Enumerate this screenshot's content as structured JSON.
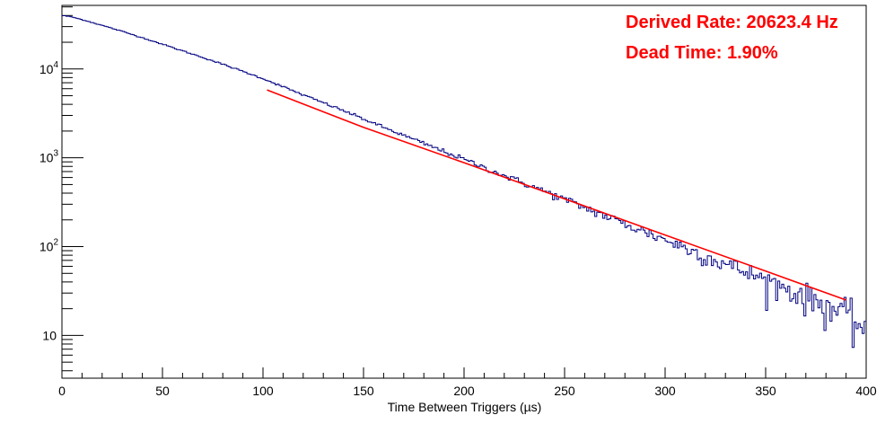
{
  "chart_data": {
    "type": "line",
    "xlabel": "Time Between Triggers (µs)",
    "ylabel": "",
    "xlim": [
      0,
      400
    ],
    "ylim": [
      3.3,
      52000
    ],
    "yscale": "log",
    "grid": false,
    "x_ticks": [
      "0",
      "50",
      "100",
      "150",
      "200",
      "250",
      "300",
      "350",
      "400"
    ],
    "y_ticks": [
      {
        "value": 10,
        "label": "10"
      },
      {
        "value": 100,
        "label": "10",
        "sup": "2"
      },
      {
        "value": 1000,
        "label": "10",
        "sup": "3"
      },
      {
        "value": 10000,
        "label": "10",
        "sup": "4"
      }
    ],
    "annotations": [
      {
        "text": "Derived Rate: 20623.4 Hz",
        "color": "#ff0000",
        "position": "top-right"
      },
      {
        "text": "Dead Time: 1.90%",
        "color": "#ff0000",
        "position": "top-right"
      }
    ],
    "series": [
      {
        "kind": "histogram",
        "color": "#000080",
        "bin_width": 1,
        "x": [
          0,
          5,
          10,
          20,
          30,
          40,
          50,
          60,
          70,
          80,
          90,
          100,
          120,
          140,
          160,
          180,
          200,
          220,
          240,
          260,
          280,
          300,
          320,
          340,
          360,
          380,
          390,
          400
        ],
        "y": [
          40000,
          38500,
          36000,
          31000,
          26500,
          22500,
          19000,
          16000,
          13500,
          11300,
          9400,
          7800,
          5100,
          3400,
          2200,
          1450,
          960,
          630,
          420,
          275,
          180,
          120,
          78,
          52,
          34,
          22,
          17,
          12
        ]
      },
      {
        "kind": "fit",
        "color": "#ff0000",
        "x": [
          102,
          150,
          200,
          250,
          300,
          350,
          390
        ],
        "y": [
          5800,
          2200,
          880,
          345,
          135,
          53,
          25
        ]
      }
    ]
  }
}
